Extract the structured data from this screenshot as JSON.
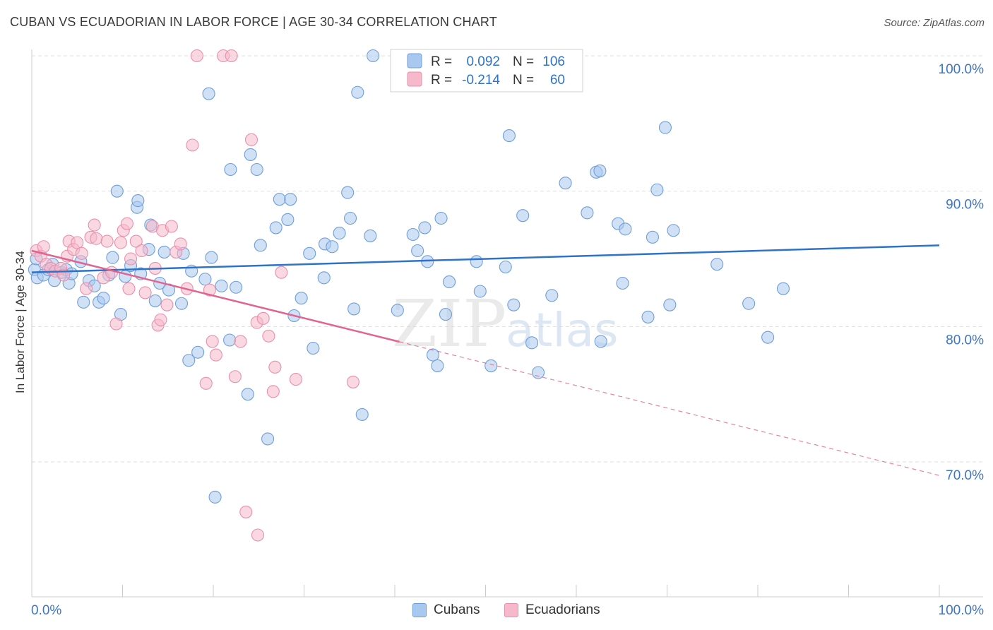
{
  "title": "CUBAN VS ECUADORIAN IN LABOR FORCE | AGE 30-34 CORRELATION CHART",
  "source": "Source: ZipAtlas.com",
  "watermark": {
    "zip": "ZIP",
    "atlas": "atlas"
  },
  "legend_top": [
    {
      "r_label": "R =",
      "r_value": "0.092",
      "n_label": "N =",
      "n_value": "106"
    },
    {
      "r_label": "R =",
      "r_value": "-0.214",
      "n_label": "N =",
      "n_value": "60"
    }
  ],
  "legend_bottom": [
    {
      "label": "Cubans"
    },
    {
      "label": "Ecuadorians"
    }
  ],
  "colors": {
    "blue_fill": "#a9c8ef",
    "blue_stroke": "#6f9fdb",
    "blue_line": "#2e72c9",
    "pink_fill": "#f6b8cb",
    "pink_stroke": "#ea8fad",
    "pink_line": "#e0648f",
    "axis_text": "#3d75c7",
    "grid": "#dddddd"
  },
  "chart_data": {
    "type": "scatter",
    "title": "CUBAN VS ECUADORIAN IN LABOR FORCE | AGE 30-34 CORRELATION CHART",
    "xlabel": "",
    "ylabel": "In Labor Force | Age 30-34",
    "xlim": [
      0,
      100
    ],
    "ylim": [
      60.5,
      102
    ],
    "x_tick_labels": [
      "0.0%",
      "100.0%"
    ],
    "y_ticks": [
      {
        "value": 100,
        "label": "100.0%"
      },
      {
        "value": 90,
        "label": "90.0%"
      },
      {
        "value": 80,
        "label": "80.0%"
      },
      {
        "value": 70,
        "label": "70.0%"
      }
    ],
    "series": [
      {
        "name": "Cubans",
        "color": "#a9c8ef",
        "trend": {
          "x0": 0,
          "y0": 84.0,
          "x1": 100,
          "y1": 86.0
        },
        "points": [
          [
            0.3,
            84.2
          ],
          [
            0.5,
            85.0
          ],
          [
            0.6,
            83.6
          ],
          [
            1.3,
            83.8
          ],
          [
            1.8,
            84.2
          ],
          [
            2.3,
            84.6
          ],
          [
            2.5,
            83.4
          ],
          [
            3.3,
            84.0
          ],
          [
            3.8,
            84.2
          ],
          [
            4.1,
            83.2
          ],
          [
            4.4,
            83.9
          ],
          [
            5.4,
            84.8
          ],
          [
            5.7,
            81.8
          ],
          [
            6.3,
            83.4
          ],
          [
            6.9,
            83.0
          ],
          [
            7.4,
            81.8
          ],
          [
            7.9,
            82.1
          ],
          [
            8.5,
            83.8
          ],
          [
            8.9,
            85.1
          ],
          [
            9.4,
            90.0
          ],
          [
            9.8,
            80.9
          ],
          [
            10.3,
            83.7
          ],
          [
            10.9,
            84.5
          ],
          [
            11.6,
            88.8
          ],
          [
            11.7,
            89.3
          ],
          [
            12.0,
            83.9
          ],
          [
            12.9,
            85.7
          ],
          [
            13.1,
            87.5
          ],
          [
            13.6,
            81.9
          ],
          [
            14.1,
            83.2
          ],
          [
            14.6,
            85.5
          ],
          [
            15.1,
            82.7
          ],
          [
            16.5,
            81.7
          ],
          [
            16.7,
            85.4
          ],
          [
            17.3,
            77.5
          ],
          [
            17.6,
            84.1
          ],
          [
            18.3,
            78.1
          ],
          [
            19.1,
            83.5
          ],
          [
            19.5,
            97.2
          ],
          [
            19.8,
            85.1
          ],
          [
            20.2,
            67.4
          ],
          [
            20.9,
            83.0
          ],
          [
            21.8,
            79.0
          ],
          [
            21.9,
            91.6
          ],
          [
            22.5,
            82.9
          ],
          [
            23.8,
            75.0
          ],
          [
            24.1,
            92.7
          ],
          [
            24.8,
            91.6
          ],
          [
            25.2,
            86.0
          ],
          [
            26.0,
            71.7
          ],
          [
            26.9,
            87.3
          ],
          [
            27.3,
            89.4
          ],
          [
            28.2,
            87.9
          ],
          [
            28.5,
            89.4
          ],
          [
            28.9,
            80.8
          ],
          [
            29.7,
            82.1
          ],
          [
            30.6,
            85.4
          ],
          [
            31.0,
            78.4
          ],
          [
            32.2,
            83.6
          ],
          [
            32.3,
            86.1
          ],
          [
            33.1,
            85.9
          ],
          [
            33.9,
            86.9
          ],
          [
            34.8,
            89.9
          ],
          [
            35.1,
            88.0
          ],
          [
            35.5,
            81.3
          ],
          [
            35.9,
            97.3
          ],
          [
            36.4,
            73.5
          ],
          [
            37.3,
            86.7
          ],
          [
            37.6,
            100.0
          ],
          [
            40.3,
            81.2
          ],
          [
            42.0,
            86.8
          ],
          [
            42.5,
            85.6
          ],
          [
            43.3,
            87.3
          ],
          [
            43.6,
            84.8
          ],
          [
            44.2,
            77.9
          ],
          [
            44.7,
            77.1
          ],
          [
            45.1,
            88.0
          ],
          [
            45.6,
            80.9
          ],
          [
            46.0,
            83.3
          ],
          [
            49.0,
            84.8
          ],
          [
            49.4,
            82.6
          ],
          [
            50.6,
            77.1
          ],
          [
            52.2,
            84.4
          ],
          [
            52.6,
            94.1
          ],
          [
            53.1,
            81.6
          ],
          [
            54.1,
            88.2
          ],
          [
            55.1,
            78.8
          ],
          [
            55.8,
            76.6
          ],
          [
            57.3,
            82.3
          ],
          [
            58.8,
            90.6
          ],
          [
            61.2,
            88.4
          ],
          [
            62.2,
            91.4
          ],
          [
            62.6,
            91.5
          ],
          [
            62.7,
            78.9
          ],
          [
            64.6,
            87.6
          ],
          [
            65.1,
            83.2
          ],
          [
            65.4,
            87.2
          ],
          [
            67.9,
            80.7
          ],
          [
            68.4,
            86.6
          ],
          [
            68.9,
            90.1
          ],
          [
            69.8,
            94.7
          ],
          [
            70.3,
            81.6
          ],
          [
            70.7,
            87.1
          ],
          [
            75.5,
            84.6
          ],
          [
            79.0,
            81.7
          ],
          [
            81.1,
            79.2
          ],
          [
            82.8,
            82.8
          ]
        ]
      },
      {
        "name": "Ecuadorians",
        "color": "#f6b8cb",
        "trend": {
          "x0": 0,
          "y0": 85.6,
          "x1": 100,
          "y1": 69.0,
          "solid_until_x": 40.5
        },
        "points": [
          [
            0.5,
            85.6
          ],
          [
            1.0,
            85.2
          ],
          [
            1.3,
            85.9
          ],
          [
            1.6,
            84.6
          ],
          [
            2.1,
            84.3
          ],
          [
            2.6,
            84.1
          ],
          [
            3.2,
            84.3
          ],
          [
            3.5,
            83.8
          ],
          [
            3.9,
            85.2
          ],
          [
            4.1,
            86.3
          ],
          [
            4.6,
            85.7
          ],
          [
            5.0,
            86.2
          ],
          [
            5.5,
            85.4
          ],
          [
            6.0,
            82.8
          ],
          [
            6.5,
            86.6
          ],
          [
            6.9,
            87.5
          ],
          [
            7.1,
            86.5
          ],
          [
            7.9,
            83.6
          ],
          [
            8.3,
            86.3
          ],
          [
            8.8,
            84.0
          ],
          [
            9.3,
            80.2
          ],
          [
            9.8,
            86.2
          ],
          [
            10.1,
            87.1
          ],
          [
            10.5,
            87.6
          ],
          [
            10.9,
            85.0
          ],
          [
            11.5,
            86.3
          ],
          [
            12.1,
            85.6
          ],
          [
            12.5,
            82.5
          ],
          [
            13.3,
            87.4
          ],
          [
            13.9,
            80.1
          ],
          [
            14.2,
            80.5
          ],
          [
            14.4,
            87.1
          ],
          [
            14.9,
            81.6
          ],
          [
            15.4,
            87.4
          ],
          [
            15.9,
            85.5
          ],
          [
            16.4,
            86.1
          ],
          [
            17.1,
            82.8
          ],
          [
            17.7,
            93.4
          ],
          [
            18.2,
            100.0
          ],
          [
            19.2,
            75.8
          ],
          [
            19.6,
            82.7
          ],
          [
            19.9,
            78.9
          ],
          [
            20.3,
            77.9
          ],
          [
            21.1,
            100.0
          ],
          [
            22.0,
            100.0
          ],
          [
            22.4,
            76.3
          ],
          [
            23.0,
            78.9
          ],
          [
            23.6,
            66.3
          ],
          [
            24.2,
            93.8
          ],
          [
            24.8,
            80.3
          ],
          [
            24.9,
            64.6
          ],
          [
            25.5,
            80.6
          ],
          [
            26.1,
            79.3
          ],
          [
            26.6,
            75.2
          ],
          [
            26.8,
            77.0
          ],
          [
            27.5,
            84.0
          ],
          [
            29.1,
            76.1
          ],
          [
            35.4,
            75.9
          ],
          [
            13.6,
            84.3
          ],
          [
            10.7,
            82.8
          ]
        ]
      }
    ]
  }
}
